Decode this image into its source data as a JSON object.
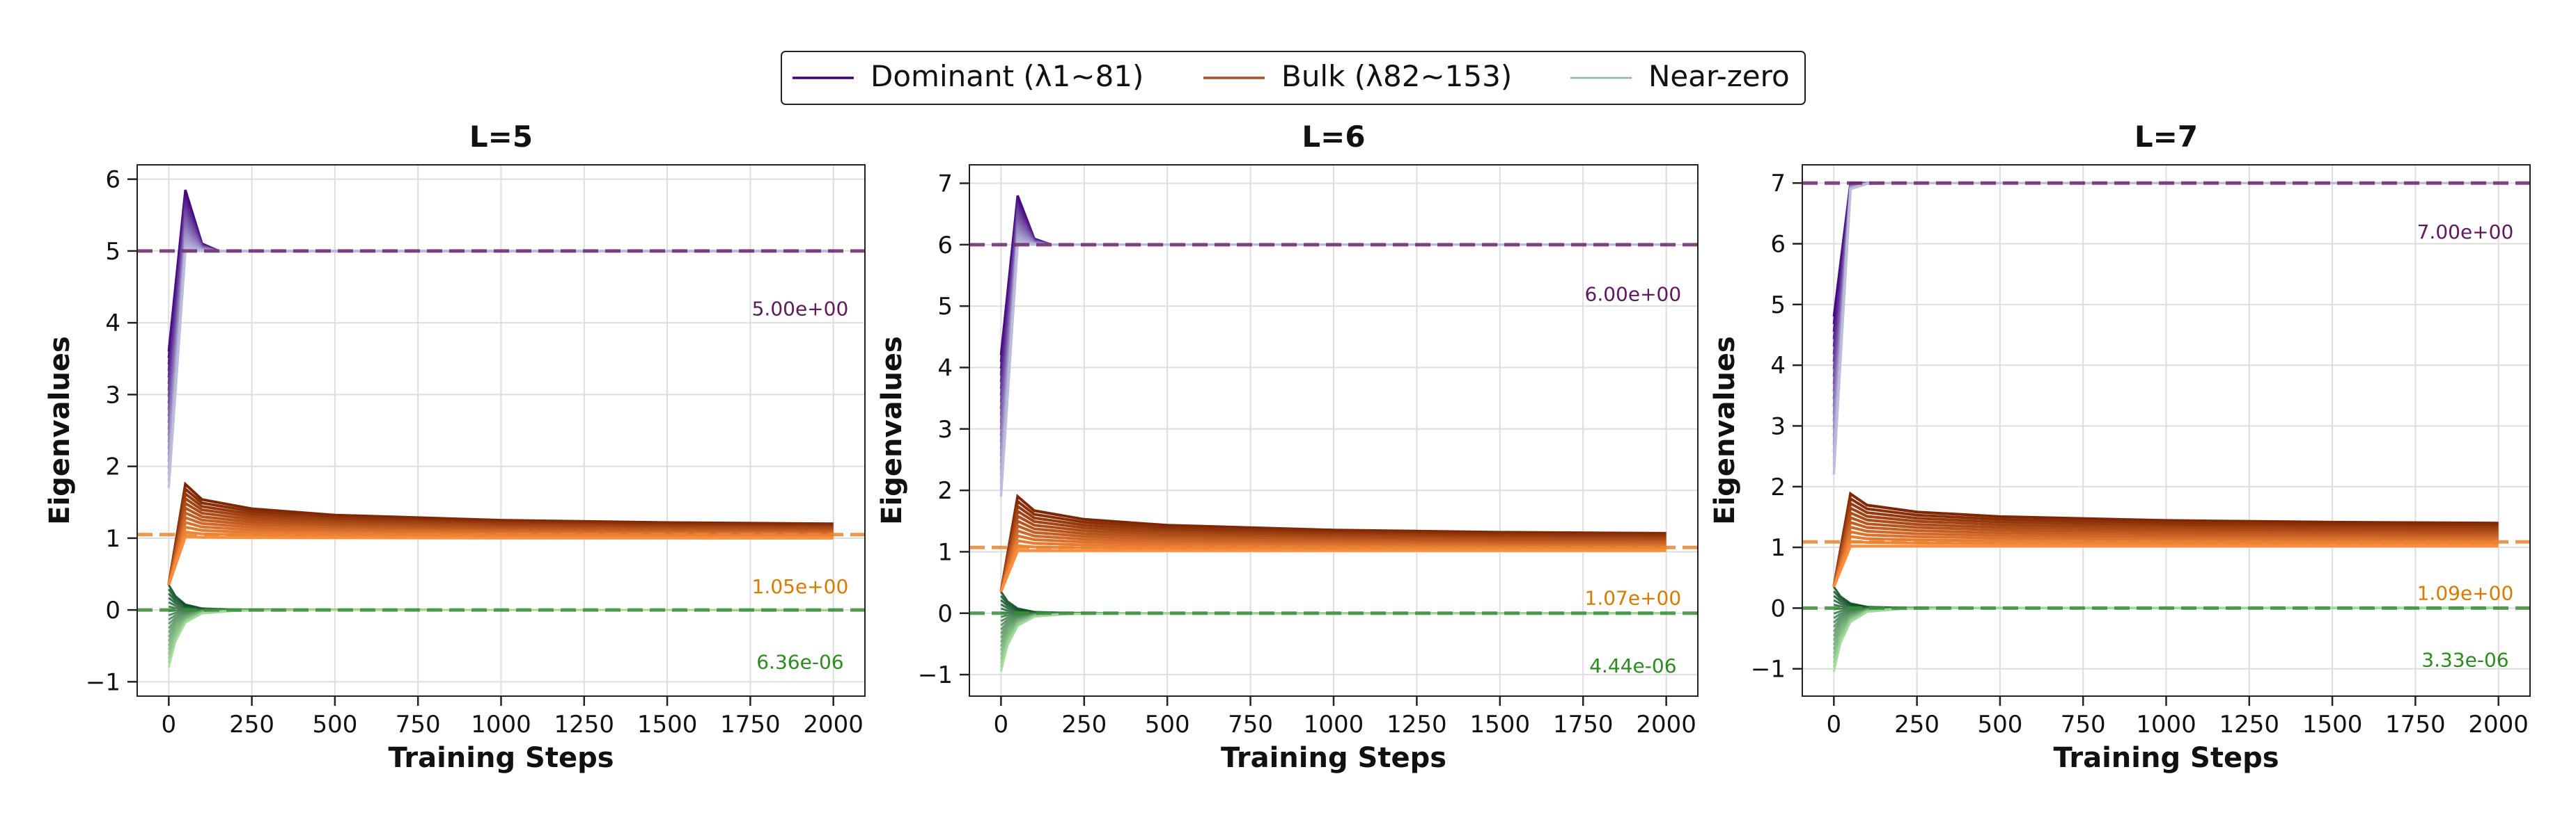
{
  "legend": {
    "placement": "top-center",
    "entries": [
      {
        "label": "Dominant (λ1~81)",
        "color": "#3f007d"
      },
      {
        "label": "Bulk (λ82~153)",
        "color": "#a0522d"
      },
      {
        "label": "Near-zero",
        "color": "#7fb08f"
      }
    ]
  },
  "colors": {
    "dominant_dark": "#3f007d",
    "dominant_light": "#bcbddc",
    "bulk_dark": "#7f2704",
    "bulk_light": "#fd8d3c",
    "zero_dark": "#00441b",
    "zero_light": "#a1d99b",
    "ref_dominant": "#6e2a6e",
    "ref_bulk": "#e6862e",
    "ref_zero": "#3a8f3a",
    "ann_dominant": "#5e1a5e",
    "ann_bulk": "#d97a00",
    "ann_zero": "#2e8b22"
  },
  "chart_data": [
    {
      "type": "line",
      "title": "L=5",
      "xlabel": "Training Steps",
      "ylabel": "Eigenvalues",
      "xlim": [
        -95,
        2095
      ],
      "ylim": [
        -1.2,
        6.2
      ],
      "xticks": [
        0,
        250,
        500,
        750,
        1000,
        1250,
        1500,
        1750,
        2000
      ],
      "yticks": [
        -1,
        0,
        1,
        2,
        3,
        4,
        5,
        6
      ],
      "grid": true,
      "reference_lines": [
        {
          "group": "dominant",
          "y": 5.0,
          "label": "5.00e+00",
          "label_y": 4.2
        },
        {
          "group": "bulk",
          "y": 1.05,
          "label": "1.05e+00",
          "label_y": 0.33
        },
        {
          "group": "zero",
          "y": 6.36e-06,
          "label": "6.36e-06",
          "label_y": -0.72
        }
      ],
      "groups": {
        "dominant": {
          "start": [
            1.7,
            3.6
          ],
          "peak": [
            5.0,
            5.85
          ],
          "final": 5.0
        },
        "bulk": {
          "start": [
            0.35,
            0.35
          ],
          "peak": [
            1.02,
            1.75
          ],
          "final": [
            1.0,
            1.2
          ]
        },
        "zero": {
          "start": [
            -0.8,
            0.35
          ],
          "final": 0.0
        }
      }
    },
    {
      "type": "line",
      "title": "L=6",
      "xlabel": "Training Steps",
      "ylabel": "Eigenvalues",
      "xlim": [
        -95,
        2095
      ],
      "ylim": [
        -1.35,
        7.3
      ],
      "xticks": [
        0,
        250,
        500,
        750,
        1000,
        1250,
        1500,
        1750,
        2000
      ],
      "yticks": [
        -1,
        0,
        1,
        2,
        3,
        4,
        5,
        6,
        7
      ],
      "grid": true,
      "reference_lines": [
        {
          "group": "dominant",
          "y": 6.0,
          "label": "6.00e+00",
          "label_y": 5.2
        },
        {
          "group": "bulk",
          "y": 1.07,
          "label": "1.07e+00",
          "label_y": 0.25
        },
        {
          "group": "zero",
          "y": 4.44e-06,
          "label": "4.44e-06",
          "label_y": -0.85
        }
      ],
      "groups": {
        "dominant": {
          "start": [
            1.9,
            4.2
          ],
          "peak": [
            6.0,
            6.8
          ],
          "final": 6.0
        },
        "bulk": {
          "start": [
            0.35,
            0.35
          ],
          "peak": [
            1.02,
            1.9
          ],
          "final": [
            1.02,
            1.3
          ]
        },
        "zero": {
          "start": [
            -0.95,
            0.35
          ],
          "final": 0.0
        }
      }
    },
    {
      "type": "line",
      "title": "L=7",
      "xlabel": "Training Steps",
      "ylabel": "Eigenvalues",
      "xlim": [
        -95,
        2095
      ],
      "ylim": [
        -1.45,
        7.3
      ],
      "xticks": [
        0,
        250,
        500,
        750,
        1000,
        1250,
        1500,
        1750,
        2000
      ],
      "yticks": [
        -1,
        0,
        1,
        2,
        3,
        4,
        5,
        6,
        7
      ],
      "grid": true,
      "reference_lines": [
        {
          "group": "dominant",
          "y": 7.0,
          "label": "7.00e+00",
          "label_y": 6.2
        },
        {
          "group": "bulk",
          "y": 1.09,
          "label": "1.09e+00",
          "label_y": 0.25
        },
        {
          "group": "zero",
          "y": 3.33e-06,
          "label": "3.33e-06",
          "label_y": -0.85
        }
      ],
      "groups": {
        "dominant": {
          "start": [
            2.2,
            4.8
          ],
          "peak": [
            6.9,
            7.0
          ],
          "final": 7.0
        },
        "bulk": {
          "start": [
            0.35,
            0.35
          ],
          "peak": [
            1.02,
            1.88
          ],
          "final": [
            1.02,
            1.4
          ]
        },
        "zero": {
          "start": [
            -1.05,
            0.35
          ],
          "final": 0.0
        }
      }
    }
  ]
}
